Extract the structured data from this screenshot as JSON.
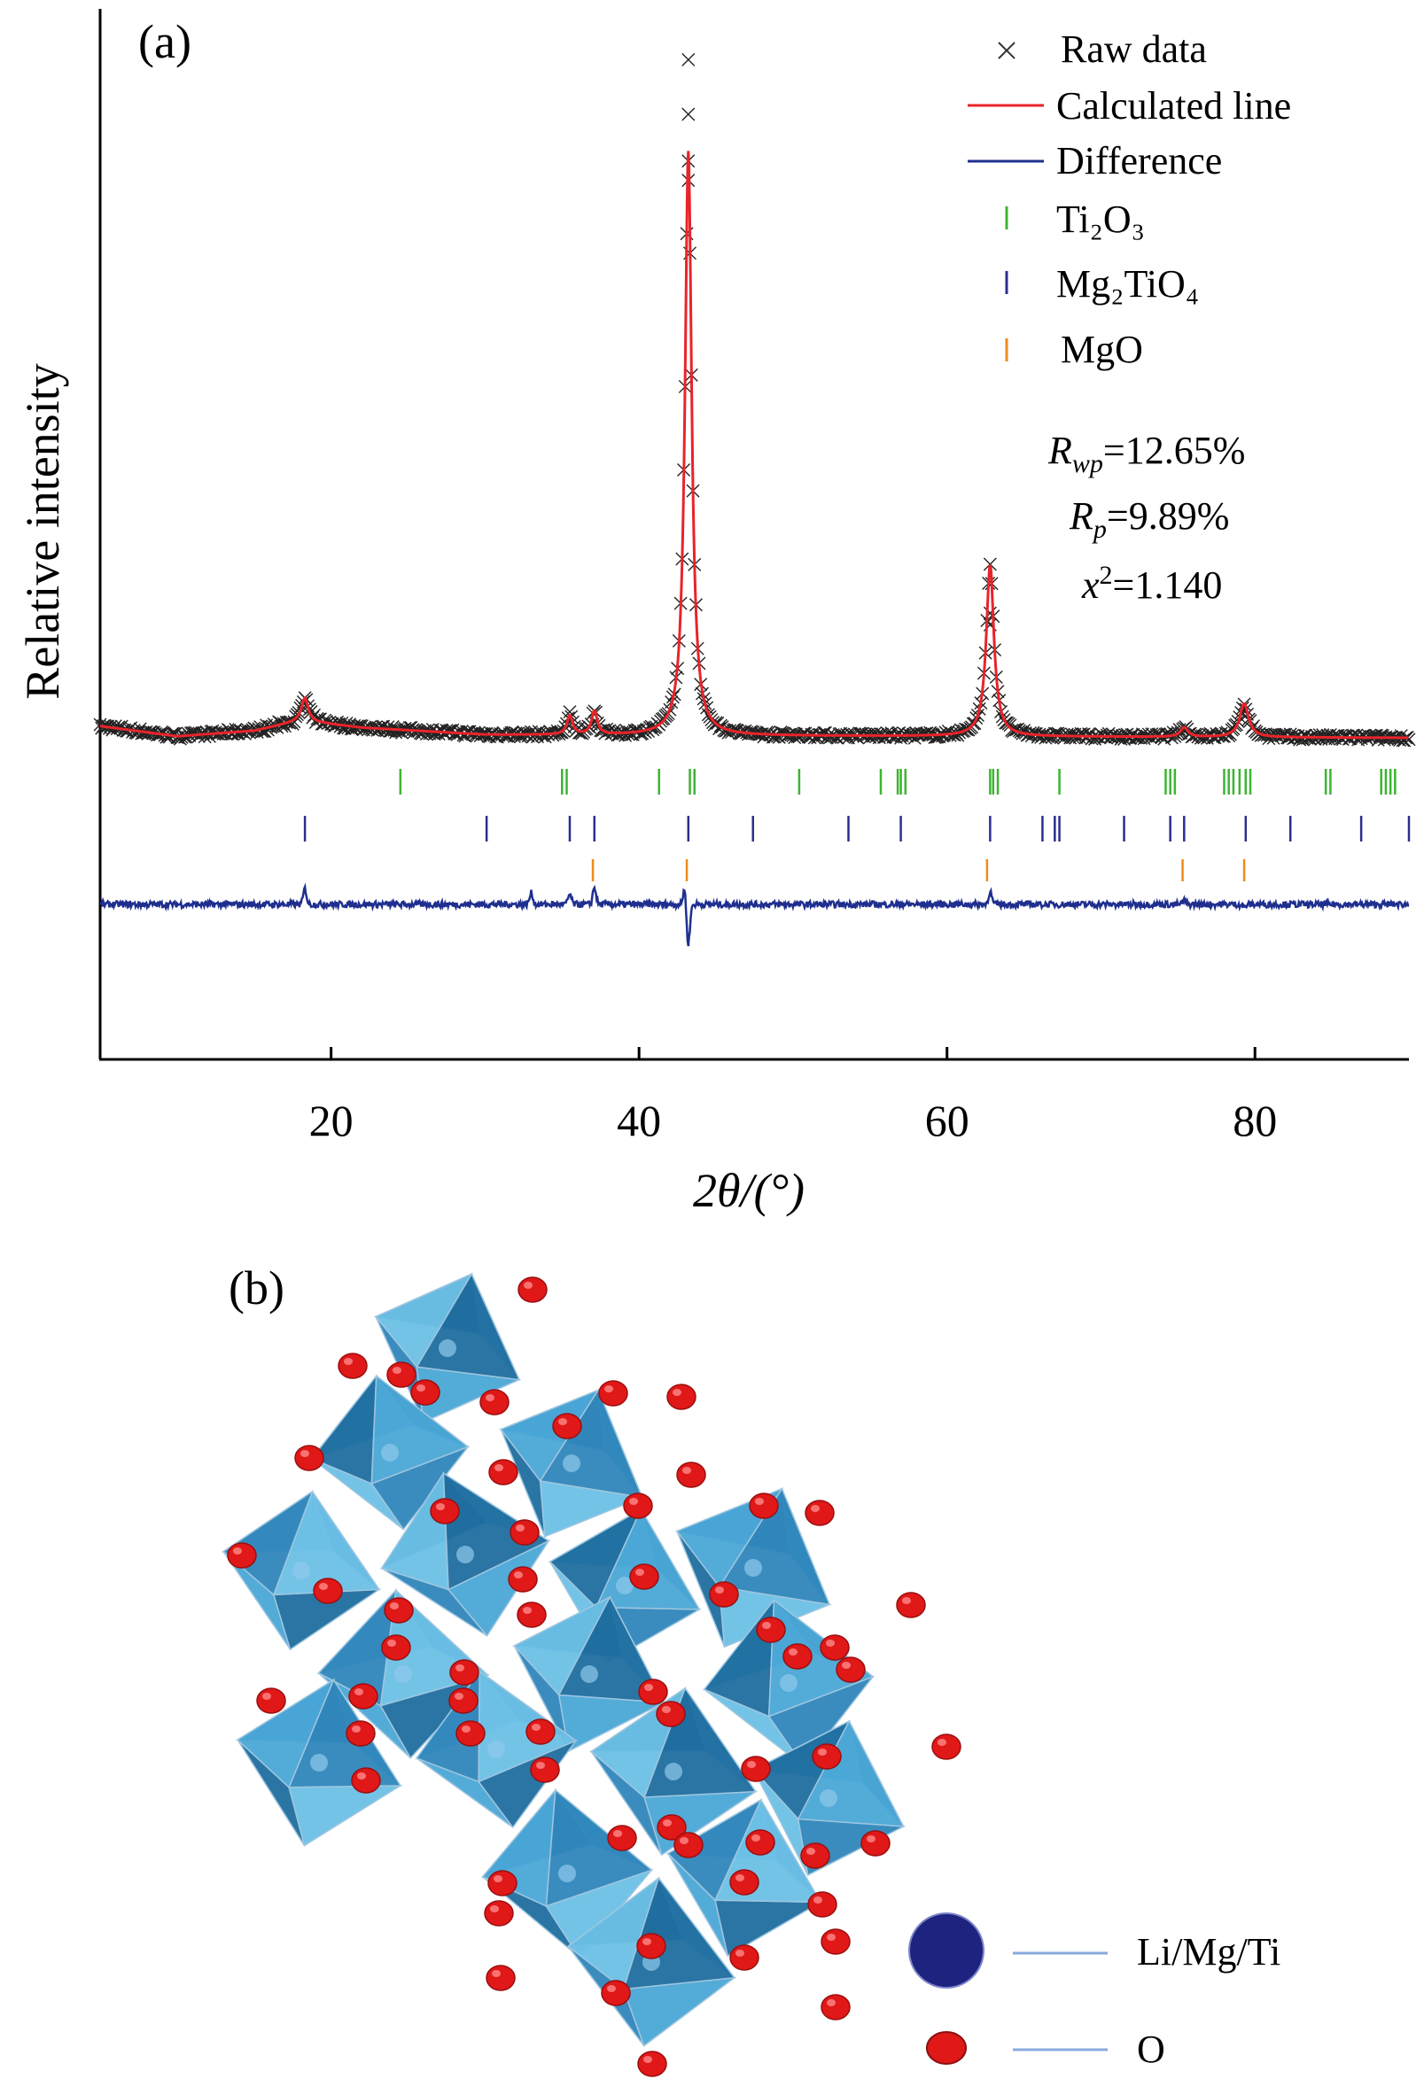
{
  "panel_a_label": "(a)",
  "panel_b_label": "(b)",
  "chart_data": {
    "type": "line",
    "xlabel": "2θ/(°)",
    "ylabel": "Relative intensity",
    "xlim": [
      5,
      90
    ],
    "x_ticks": [
      20,
      40,
      60,
      80
    ],
    "y_ticks": [],
    "grid": false,
    "legend_position": "top-right",
    "legend": [
      {
        "name": "Raw data",
        "marker": "x",
        "color": "#333333"
      },
      {
        "name": "Calculated line",
        "marker": "line",
        "color": "#e8242a"
      },
      {
        "name": "Difference",
        "marker": "line",
        "color": "#1f2f8f"
      },
      {
        "name": "Ti₂O₃",
        "marker": "tick",
        "color": "#3cb531"
      },
      {
        "name": "Mg₂TiO₄",
        "marker": "tick",
        "color": "#2a2f8f"
      },
      {
        "name": "MgO",
        "marker": "tick",
        "color": "#f08a1c"
      }
    ],
    "annotations": [
      "Rwp=12.65%",
      "Rp=9.89%",
      "x²=1.140"
    ],
    "refinement": {
      "Rwp_percent": 12.65,
      "Rp_percent": 9.89,
      "chi2": 1.14
    },
    "peaks": [
      {
        "two_theta": 18.3,
        "height": 3.0,
        "width": 0.25
      },
      {
        "two_theta": 35.5,
        "height": 2.4,
        "width": 0.22
      },
      {
        "two_theta": 37.1,
        "height": 3.0,
        "width": 0.22
      },
      {
        "two_theta": 43.2,
        "height": 75.0,
        "width": 0.26
      },
      {
        "two_theta": 62.8,
        "height": 22.0,
        "width": 0.3
      },
      {
        "two_theta": 75.4,
        "height": 1.2,
        "width": 0.3
      },
      {
        "two_theta": 79.3,
        "height": 4.3,
        "width": 0.35
      }
    ],
    "background": [
      [
        5,
        1.5
      ],
      [
        10,
        0.2
      ],
      [
        15,
        0.9
      ],
      [
        18,
        2.2
      ],
      [
        22,
        1.3
      ],
      [
        30,
        0.4
      ],
      [
        40,
        0.3
      ],
      [
        60,
        0.2
      ],
      [
        90,
        0.0
      ]
    ],
    "raw_data_max": 87,
    "difference_features": [
      {
        "two_theta": 18.3,
        "amplitude": 2.2
      },
      {
        "two_theta": 33.0,
        "amplitude": 1.6
      },
      {
        "two_theta": 35.5,
        "amplitude": 1.4
      },
      {
        "two_theta": 37.1,
        "amplitude": 2.4
      },
      {
        "two_theta": 43.2,
        "amplitude": -5.5
      },
      {
        "two_theta": 62.8,
        "amplitude": 1.8
      },
      {
        "two_theta": 75.4,
        "amplitude": 0.5
      },
      {
        "two_theta": 79.3,
        "amplitude": -0.4
      }
    ],
    "reflection_ticks": {
      "Ti2O3": [
        24.5,
        35.0,
        35.3,
        41.3,
        43.3,
        43.6,
        50.4,
        55.7,
        56.8,
        57.0,
        57.3,
        62.8,
        63.0,
        63.3,
        67.3,
        74.2,
        74.5,
        74.8,
        78.0,
        78.3,
        78.6,
        79.0,
        79.4,
        79.7,
        84.6,
        84.9,
        88.2,
        88.5,
        88.8,
        89.1
      ],
      "Mg2TiO4": [
        18.3,
        30.1,
        35.5,
        37.1,
        43.2,
        47.4,
        53.6,
        57.0,
        62.8,
        66.2,
        67.0,
        67.3,
        71.5,
        74.5,
        75.4,
        79.4,
        82.3,
        86.9,
        90.0
      ],
      "MgO": [
        37.0,
        43.1,
        62.6,
        75.3,
        79.3
      ]
    }
  },
  "structure": {
    "legend": [
      {
        "label": "Li/Mg/Ti",
        "color": "#1e2380"
      },
      {
        "label": "O",
        "color": "#e01818"
      }
    ]
  }
}
